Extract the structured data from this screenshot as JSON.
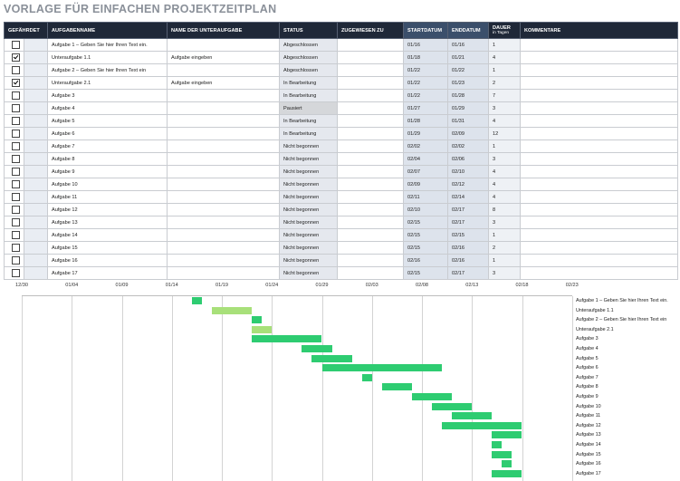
{
  "title": "VORLAGE FÜR EINFACHEN PROJEKTZEITPLAN",
  "headers": {
    "gefaehrdet": "GEFÄHRDET",
    "aufgabenname": "AUFGABENNAME",
    "unteraufgabe": "NAME DER UNTERAUFGABE",
    "status": "STATUS",
    "zugewiesen": "ZUGEWIESEN ZU",
    "startdatum": "STARTDATUM",
    "enddatum": "ENDDATUM",
    "dauer": "DAUER",
    "dauer_sub": "in Tagen",
    "kommentare": "KOMMENTARE"
  },
  "rows": [
    {
      "checked": false,
      "task": "Aufgabe 1 – Geben Sie hier Ihren Text ein.",
      "sub": "",
      "status": "Abgeschlossen",
      "start": "01/16",
      "end": "01/16",
      "dur": "1"
    },
    {
      "checked": true,
      "task": "Unteraufgabe 1.1",
      "sub": "Aufgabe eingeben",
      "status": "Abgeschlossen",
      "start": "01/18",
      "end": "01/21",
      "dur": "4"
    },
    {
      "checked": false,
      "task": "Aufgabe 2 – Geben Sie hier Ihren Text ein",
      "sub": "",
      "status": "Abgeschlossen",
      "start": "01/22",
      "end": "01/22",
      "dur": "1"
    },
    {
      "checked": true,
      "task": "Unteraufgabe 2.1",
      "sub": "Aufgabe eingeben",
      "status": "In Bearbeitung",
      "start": "01/22",
      "end": "01/23",
      "dur": "2"
    },
    {
      "checked": false,
      "task": "Aufgabe 3",
      "sub": "",
      "status": "In Bearbeitung",
      "start": "01/22",
      "end": "01/28",
      "dur": "7"
    },
    {
      "checked": false,
      "task": "Aufgabe 4",
      "sub": "",
      "status": "Pausiert",
      "start": "01/27",
      "end": "01/29",
      "dur": "3"
    },
    {
      "checked": false,
      "task": "Aufgabe 5",
      "sub": "",
      "status": "In Bearbeitung",
      "start": "01/28",
      "end": "01/31",
      "dur": "4"
    },
    {
      "checked": false,
      "task": "Aufgabe 6",
      "sub": "",
      "status": "In Bearbeitung",
      "start": "01/29",
      "end": "02/09",
      "dur": "12"
    },
    {
      "checked": false,
      "task": "Aufgabe 7",
      "sub": "",
      "status": "Nicht begonnen",
      "start": "02/02",
      "end": "02/02",
      "dur": "1"
    },
    {
      "checked": false,
      "task": "Aufgabe 8",
      "sub": "",
      "status": "Nicht begonnen",
      "start": "02/04",
      "end": "02/06",
      "dur": "3"
    },
    {
      "checked": false,
      "task": "Aufgabe 9",
      "sub": "",
      "status": "Nicht begonnen",
      "start": "02/07",
      "end": "02/10",
      "dur": "4"
    },
    {
      "checked": false,
      "task": "Aufgabe 10",
      "sub": "",
      "status": "Nicht begonnen",
      "start": "02/09",
      "end": "02/12",
      "dur": "4"
    },
    {
      "checked": false,
      "task": "Aufgabe 11",
      "sub": "",
      "status": "Nicht begonnen",
      "start": "02/11",
      "end": "02/14",
      "dur": "4"
    },
    {
      "checked": false,
      "task": "Aufgabe 12",
      "sub": "",
      "status": "Nicht begonnen",
      "start": "02/10",
      "end": "02/17",
      "dur": "8"
    },
    {
      "checked": false,
      "task": "Aufgabe 13",
      "sub": "",
      "status": "Nicht begonnen",
      "start": "02/15",
      "end": "02/17",
      "dur": "3"
    },
    {
      "checked": false,
      "task": "Aufgabe 14",
      "sub": "",
      "status": "Nicht begonnen",
      "start": "02/15",
      "end": "02/15",
      "dur": "1"
    },
    {
      "checked": false,
      "task": "Aufgabe 15",
      "sub": "",
      "status": "Nicht begonnen",
      "start": "02/15",
      "end": "02/16",
      "dur": "2"
    },
    {
      "checked": false,
      "task": "Aufgabe 16",
      "sub": "",
      "status": "Nicht begonnen",
      "start": "02/16",
      "end": "02/16",
      "dur": "1"
    },
    {
      "checked": false,
      "task": "Aufgabe 17",
      "sub": "",
      "status": "Nicht begonnen",
      "start": "02/15",
      "end": "02/17",
      "dur": "3"
    }
  ],
  "gantt": {
    "ticks": [
      "12/30",
      "01/04",
      "01/09",
      "01/14",
      "01/19",
      "01/24",
      "01/29",
      "02/03",
      "02/08",
      "02/13",
      "02/18",
      "02/23"
    ],
    "bars": [
      {
        "label": "Aufgabe 1 – Geben Sie hier Ihren Text ein.",
        "start": 17,
        "dur": 1,
        "color": "#2ecc71"
      },
      {
        "label": "Unteraufgabe 1.1",
        "start": 19,
        "dur": 4,
        "color": "#a8e07a"
      },
      {
        "label": "Aufgabe 2 – Geben Sie hier Ihren Text ein",
        "start": 23,
        "dur": 1,
        "color": "#2ecc71"
      },
      {
        "label": "Unteraufgabe 2.1",
        "start": 23,
        "dur": 2,
        "color": "#a8e07a"
      },
      {
        "label": "Aufgabe 3",
        "start": 23,
        "dur": 7,
        "color": "#2ecc71"
      },
      {
        "label": "Aufgabe 4",
        "start": 28,
        "dur": 3,
        "color": "#2ecc71"
      },
      {
        "label": "Aufgabe 5",
        "start": 29,
        "dur": 4,
        "color": "#2ecc71"
      },
      {
        "label": "Aufgabe 6",
        "start": 30,
        "dur": 12,
        "color": "#2ecc71"
      },
      {
        "label": "Aufgabe 7",
        "start": 34,
        "dur": 1,
        "color": "#2ecc71"
      },
      {
        "label": "Aufgabe 8",
        "start": 36,
        "dur": 3,
        "color": "#2ecc71"
      },
      {
        "label": "Aufgabe 9",
        "start": 39,
        "dur": 4,
        "color": "#2ecc71"
      },
      {
        "label": "Aufgabe 10",
        "start": 41,
        "dur": 4,
        "color": "#2ecc71"
      },
      {
        "label": "Aufgabe 11",
        "start": 43,
        "dur": 4,
        "color": "#2ecc71"
      },
      {
        "label": "Aufgabe 12",
        "start": 42,
        "dur": 8,
        "color": "#2ecc71"
      },
      {
        "label": "Aufgabe 13",
        "start": 47,
        "dur": 3,
        "color": "#2ecc71"
      },
      {
        "label": "Aufgabe 14",
        "start": 47,
        "dur": 1,
        "color": "#2ecc71"
      },
      {
        "label": "Aufgabe 15",
        "start": 47,
        "dur": 2,
        "color": "#2ecc71"
      },
      {
        "label": "Aufgabe 16",
        "start": 48,
        "dur": 1,
        "color": "#2ecc71"
      },
      {
        "label": "Aufgabe 17",
        "start": 47,
        "dur": 3,
        "color": "#2ecc71"
      }
    ]
  }
}
